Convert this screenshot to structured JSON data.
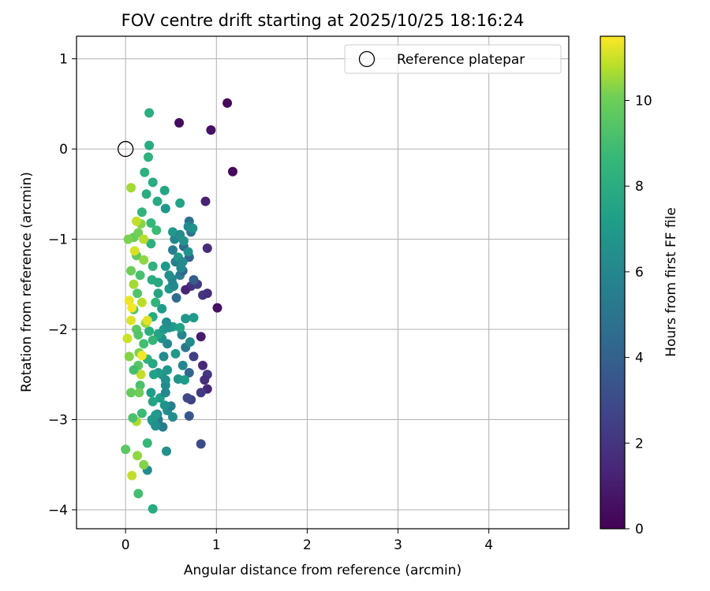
{
  "chart_data": {
    "type": "scatter",
    "title": "FOV centre drift starting at 2025/10/25 18:16:24",
    "xlabel": "Angular distance from reference (arcmin)",
    "ylabel": "Rotation from reference (arcmin)",
    "xlim": [
      -0.54,
      4.88
    ],
    "ylim": [
      -4.21,
      1.25
    ],
    "xticks": [
      0,
      1,
      2,
      3,
      4
    ],
    "yticks": [
      1,
      0,
      -1,
      -2,
      -3,
      -4
    ],
    "xtick_labels": [
      "0",
      "1",
      "2",
      "3",
      "4"
    ],
    "ytick_labels": [
      "1",
      "0",
      "−1",
      "−2",
      "−3",
      "−4"
    ],
    "grid": true,
    "colormap": "viridis",
    "colorbar": {
      "label": "Hours from first FF file",
      "range": [
        0,
        11.5
      ],
      "ticks": [
        0,
        2,
        4,
        6,
        8,
        10
      ],
      "tick_labels": [
        "0",
        "2",
        "4",
        "6",
        "8",
        "10"
      ]
    },
    "legend": {
      "label": "Reference platepar",
      "position": "top-right"
    },
    "reference_point": {
      "x": 0,
      "y": 0
    },
    "series": [
      {
        "name": "FOV centre drift",
        "points": [
          [
            1.12,
            0.51,
            0.2
          ],
          [
            0.59,
            0.29,
            0.4
          ],
          [
            0.94,
            0.21,
            0.6
          ],
          [
            1.18,
            -0.25,
            0.3
          ],
          [
            0.88,
            -0.58,
            1.2
          ],
          [
            0.9,
            -1.1,
            1.6
          ],
          [
            1.01,
            -1.76,
            0.5
          ],
          [
            0.85,
            -1.62,
            2.0
          ],
          [
            0.9,
            -1.6,
            1.8
          ],
          [
            0.83,
            -2.08,
            1.0
          ],
          [
            0.85,
            -2.4,
            1.5
          ],
          [
            0.9,
            -2.5,
            2.1
          ],
          [
            0.87,
            -2.56,
            1.7
          ],
          [
            0.9,
            -2.66,
            1.4
          ],
          [
            0.83,
            -2.7,
            2.2
          ],
          [
            0.75,
            -2.3,
            2.5
          ],
          [
            0.72,
            -2.78,
            2.4
          ],
          [
            0.68,
            -2.76,
            2.8
          ],
          [
            0.7,
            -2.96,
            3.5
          ],
          [
            0.83,
            -3.27,
            3.0
          ],
          [
            0.72,
            -1.52,
            1.9
          ],
          [
            0.66,
            -1.56,
            1.3
          ],
          [
            0.79,
            -1.5,
            2.3
          ],
          [
            0.7,
            -1.2,
            4.0
          ],
          [
            0.64,
            -1.08,
            4.5
          ],
          [
            0.72,
            -0.92,
            5.0
          ],
          [
            0.7,
            -0.8,
            4.8
          ],
          [
            0.7,
            -2.48,
            4.2
          ],
          [
            0.66,
            -2.2,
            5.2
          ],
          [
            0.6,
            -1.4,
            5.5
          ],
          [
            0.55,
            -1.25,
            5.4
          ],
          [
            0.52,
            -1.5,
            5.8
          ],
          [
            0.56,
            -1.65,
            4.6
          ],
          [
            0.63,
            -1.35,
            4.3
          ],
          [
            0.75,
            -1.45,
            3.8
          ],
          [
            0.69,
            -0.86,
            6.1
          ],
          [
            0.74,
            -0.88,
            6.5
          ],
          [
            0.66,
            -1.88,
            6.8
          ],
          [
            0.75,
            -1.87,
            7.0
          ],
          [
            0.71,
            -2.14,
            6.2
          ],
          [
            0.62,
            -2.06,
            5.9
          ],
          [
            0.63,
            -2.4,
            6.0
          ],
          [
            0.58,
            -2.55,
            6.6
          ],
          [
            0.65,
            -2.56,
            7.1
          ],
          [
            0.6,
            -1.98,
            7.4
          ],
          [
            0.52,
            -1.97,
            7.2
          ],
          [
            0.55,
            -2.27,
            6.9
          ],
          [
            0.46,
            -2.9,
            6.3
          ],
          [
            0.5,
            -2.85,
            5.7
          ],
          [
            0.52,
            -2.97,
            6.4
          ],
          [
            0.41,
            -3.08,
            5.6
          ],
          [
            0.36,
            -3.0,
            5.3
          ],
          [
            0.35,
            -2.94,
            6.0
          ],
          [
            0.43,
            -2.84,
            6.7
          ],
          [
            0.45,
            -3.35,
            6.5
          ],
          [
            0.3,
            -3.02,
            7.0
          ],
          [
            0.38,
            -2.76,
            7.2
          ],
          [
            0.44,
            -2.7,
            6.1
          ],
          [
            0.44,
            -2.62,
            6.2
          ],
          [
            0.44,
            -2.56,
            6.4
          ],
          [
            0.4,
            -2.5,
            6.6
          ],
          [
            0.46,
            -2.45,
            6.8
          ],
          [
            0.36,
            -2.48,
            7.0
          ],
          [
            0.42,
            -2.3,
            6.2
          ],
          [
            0.46,
            -2.16,
            6.0
          ],
          [
            0.4,
            -2.1,
            6.5
          ],
          [
            0.36,
            -2.05,
            7.5
          ],
          [
            0.42,
            -2.0,
            7.0
          ],
          [
            0.48,
            -1.98,
            6.7
          ],
          [
            0.45,
            -1.92,
            6.3
          ],
          [
            0.4,
            -1.77,
            7.1
          ],
          [
            0.36,
            -1.6,
            7.6
          ],
          [
            0.48,
            -1.55,
            6.8
          ],
          [
            0.53,
            -1.52,
            6.1
          ],
          [
            0.51,
            -1.44,
            5.9
          ],
          [
            0.48,
            -1.4,
            6.4
          ],
          [
            0.44,
            -1.3,
            6.9
          ],
          [
            0.52,
            -1.12,
            5.5
          ],
          [
            0.54,
            -1.0,
            6.0
          ],
          [
            0.52,
            -0.92,
            6.9
          ],
          [
            0.6,
            -0.95,
            6.3
          ],
          [
            0.64,
            -1.02,
            6.6
          ],
          [
            0.58,
            -1.2,
            6.8
          ],
          [
            0.61,
            -1.32,
            6.1
          ],
          [
            0.69,
            -1.14,
            6.5
          ],
          [
            0.63,
            -1.25,
            6.2
          ],
          [
            0.6,
            -0.6,
            7.5
          ],
          [
            0.44,
            -0.66,
            6.8
          ],
          [
            0.43,
            -0.46,
            7.6
          ],
          [
            0.35,
            -0.58,
            7.8
          ],
          [
            0.3,
            -0.37,
            8.0
          ],
          [
            0.21,
            -0.26,
            8.2
          ],
          [
            0.25,
            -0.09,
            8.3
          ],
          [
            0.26,
            0.04,
            7.9
          ],
          [
            0.26,
            0.4,
            8.1
          ],
          [
            0.18,
            -0.7,
            8.4
          ],
          [
            0.23,
            -0.5,
            8.0
          ],
          [
            0.28,
            -0.82,
            8.6
          ],
          [
            0.34,
            -0.9,
            8.8
          ],
          [
            0.28,
            -1.05,
            8.2
          ],
          [
            0.3,
            -1.3,
            8.3
          ],
          [
            0.29,
            -1.45,
            8.0
          ],
          [
            0.36,
            -1.48,
            7.8
          ],
          [
            0.33,
            -1.7,
            8.4
          ],
          [
            0.3,
            -1.86,
            7.9
          ],
          [
            0.26,
            -2.02,
            8.1
          ],
          [
            0.3,
            -2.12,
            8.5
          ],
          [
            0.24,
            -2.33,
            8.3
          ],
          [
            0.3,
            -2.38,
            7.7
          ],
          [
            0.31,
            -2.5,
            7.4
          ],
          [
            0.28,
            -2.7,
            7.2
          ],
          [
            0.3,
            -2.8,
            7.5
          ],
          [
            0.33,
            -2.95,
            7.0
          ],
          [
            0.29,
            -3.0,
            6.9
          ],
          [
            0.33,
            -3.07,
            6.4
          ],
          [
            0.24,
            -3.56,
            6.2
          ],
          [
            0.3,
            -3.99,
            7.9
          ],
          [
            0.24,
            -3.26,
            8.6
          ],
          [
            0.18,
            -2.93,
            8.8
          ],
          [
            0.16,
            -2.62,
            9.2
          ],
          [
            0.14,
            -2.4,
            9.5
          ],
          [
            0.2,
            -2.16,
            9.0
          ],
          [
            0.12,
            -2.0,
            9.6
          ],
          [
            0.09,
            -1.78,
            9.3
          ],
          [
            0.13,
            -1.6,
            9.4
          ],
          [
            0.16,
            -1.4,
            9.1
          ],
          [
            0.12,
            -1.18,
            9.7
          ],
          [
            0.09,
            -0.98,
            9.9
          ],
          [
            0.17,
            -0.83,
            10.3
          ],
          [
            0.14,
            -0.93,
            10.1
          ],
          [
            0.06,
            -0.43,
            10.6
          ],
          [
            0.2,
            -1.23,
            10.4
          ],
          [
            0.18,
            -1.7,
            10.8
          ],
          [
            0.22,
            -1.93,
            10.5
          ],
          [
            0.15,
            -2.26,
            10.2
          ],
          [
            0.17,
            -2.5,
            10.9
          ],
          [
            0.15,
            -2.7,
            10.0
          ],
          [
            0.12,
            -3.02,
            10.7
          ],
          [
            0.13,
            -3.4,
            10.4
          ],
          [
            0.07,
            -3.62,
            10.9
          ],
          [
            0.14,
            -3.82,
            9.0
          ],
          [
            0.0,
            -3.33,
            9.6
          ],
          [
            0.08,
            -2.98,
            9.2
          ],
          [
            0.06,
            -2.7,
            9.8
          ],
          [
            0.04,
            -2.3,
            10.3
          ],
          [
            0.02,
            -2.1,
            11.0
          ],
          [
            0.06,
            -1.9,
            11.2
          ],
          [
            0.04,
            -1.68,
            11.3
          ],
          [
            0.06,
            -1.35,
            10.0
          ],
          [
            0.09,
            -1.5,
            10.6
          ],
          [
            0.03,
            -1.0,
            10.2
          ],
          [
            0.12,
            -0.8,
            10.9
          ],
          [
            0.1,
            -1.13,
            11.1
          ],
          [
            0.07,
            -1.76,
            11.4
          ],
          [
            0.14,
            -2.06,
            9.4
          ],
          [
            0.09,
            -2.45,
            9.0
          ],
          [
            0.2,
            -3.5,
            10.3
          ],
          [
            0.2,
            -1.0,
            10.8
          ],
          [
            0.24,
            -1.9,
            11.2
          ],
          [
            0.18,
            -2.29,
            11.4
          ]
        ]
      }
    ]
  }
}
